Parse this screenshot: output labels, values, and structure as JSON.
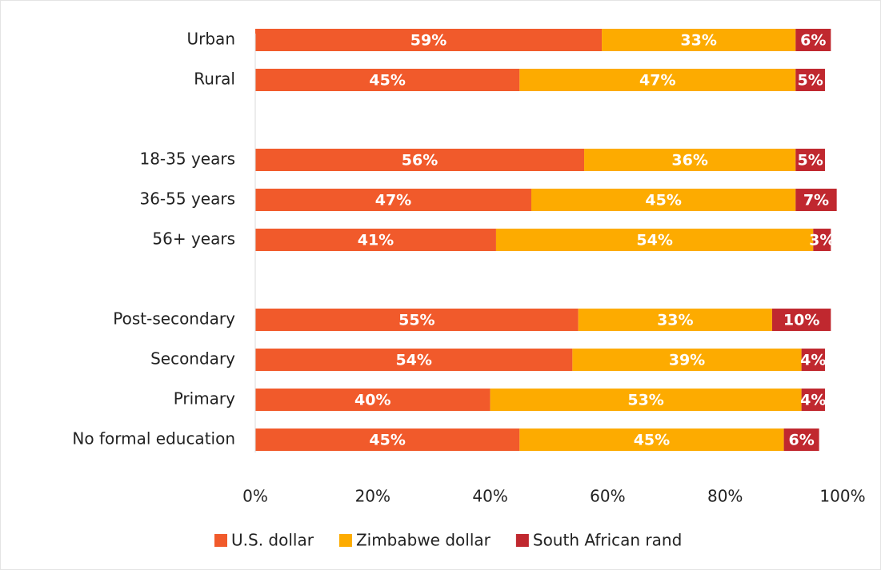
{
  "chart_data": {
    "type": "stacked_barh",
    "categories": [
      "Urban",
      "Rural",
      null,
      "18-35 years",
      "36-55 years",
      "56+ years",
      null,
      "Post-secondary",
      "Secondary",
      "Primary",
      "No formal education"
    ],
    "series": [
      {
        "name": "U.S. dollar",
        "color": "#f15a2b",
        "values": [
          59,
          45,
          null,
          56,
          47,
          41,
          null,
          55,
          54,
          40,
          45
        ],
        "value_labels": [
          "59%",
          "45%",
          null,
          "56%",
          "47%",
          "41%",
          null,
          "55%",
          "54%",
          "40%",
          "45%"
        ]
      },
      {
        "name": "Zimbabwe dollar",
        "color": "#fdab00",
        "values": [
          33,
          47,
          null,
          36,
          45,
          54,
          null,
          33,
          39,
          53,
          45
        ],
        "value_labels": [
          "33%",
          "47%",
          null,
          "36%",
          "45%",
          "54%",
          null,
          "33%",
          "39%",
          "53%",
          "45%"
        ]
      },
      {
        "name": "South African rand",
        "color": "#c0282f",
        "values": [
          6,
          5,
          null,
          5,
          7,
          3,
          null,
          10,
          4,
          4,
          6
        ],
        "value_labels": [
          "6%",
          "5%",
          null,
          "5%",
          "7%",
          "3%",
          null,
          "10%",
          "4%",
          "4%",
          "6%"
        ]
      }
    ],
    "xlim": [
      0,
      100
    ],
    "xticks": [
      {
        "value": 0,
        "label": "0%"
      },
      {
        "value": 20,
        "label": "20%"
      },
      {
        "value": 40,
        "label": "40%"
      },
      {
        "value": 60,
        "label": "60%"
      },
      {
        "value": 80,
        "label": "80%"
      },
      {
        "value": 100,
        "label": "100%"
      }
    ],
    "legend": "bottom"
  }
}
